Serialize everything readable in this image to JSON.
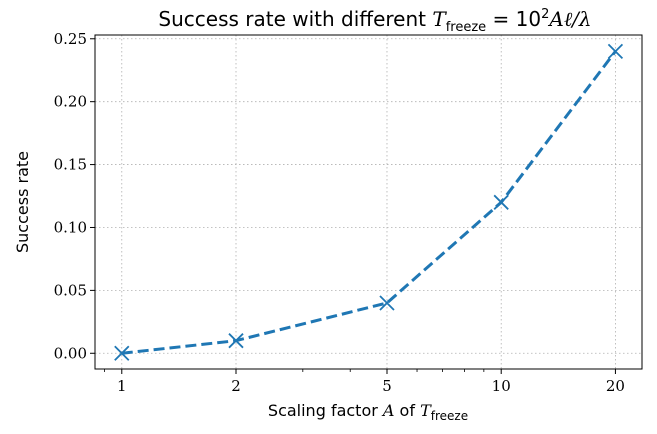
{
  "chart_data": {
    "type": "line",
    "title": {
      "prefix": "Success rate with different ",
      "formula": "T",
      "formula_sub": "freeze",
      "formula_rest": " = 10",
      "formula_sup": "2",
      "formula_end": "Aℓ/λ"
    },
    "xlabel": {
      "prefix": "Scaling factor ",
      "var": "A",
      "mid": " of ",
      "sym": "T",
      "sub": "freeze"
    },
    "ylabel": "Success rate",
    "x_scale": "log",
    "xlim": [
      0.85,
      23.5
    ],
    "ylim": [
      -0.0125,
      0.253
    ],
    "x_ticks": [
      1,
      2,
      5,
      10,
      20
    ],
    "x_tick_labels": [
      "1",
      "2",
      "5",
      "10",
      "20"
    ],
    "y_ticks": [
      0.0,
      0.05,
      0.1,
      0.15,
      0.2,
      0.25
    ],
    "y_tick_labels": [
      "0.00",
      "0.05",
      "0.10",
      "0.15",
      "0.20",
      "0.25"
    ],
    "grid": true,
    "series": [
      {
        "x": [
          1,
          2,
          5,
          10,
          20
        ],
        "y": [
          0.0,
          0.01,
          0.04,
          0.12,
          0.24
        ],
        "color": "#1f77b4",
        "line_style": "dashed",
        "marker": "x"
      }
    ]
  }
}
